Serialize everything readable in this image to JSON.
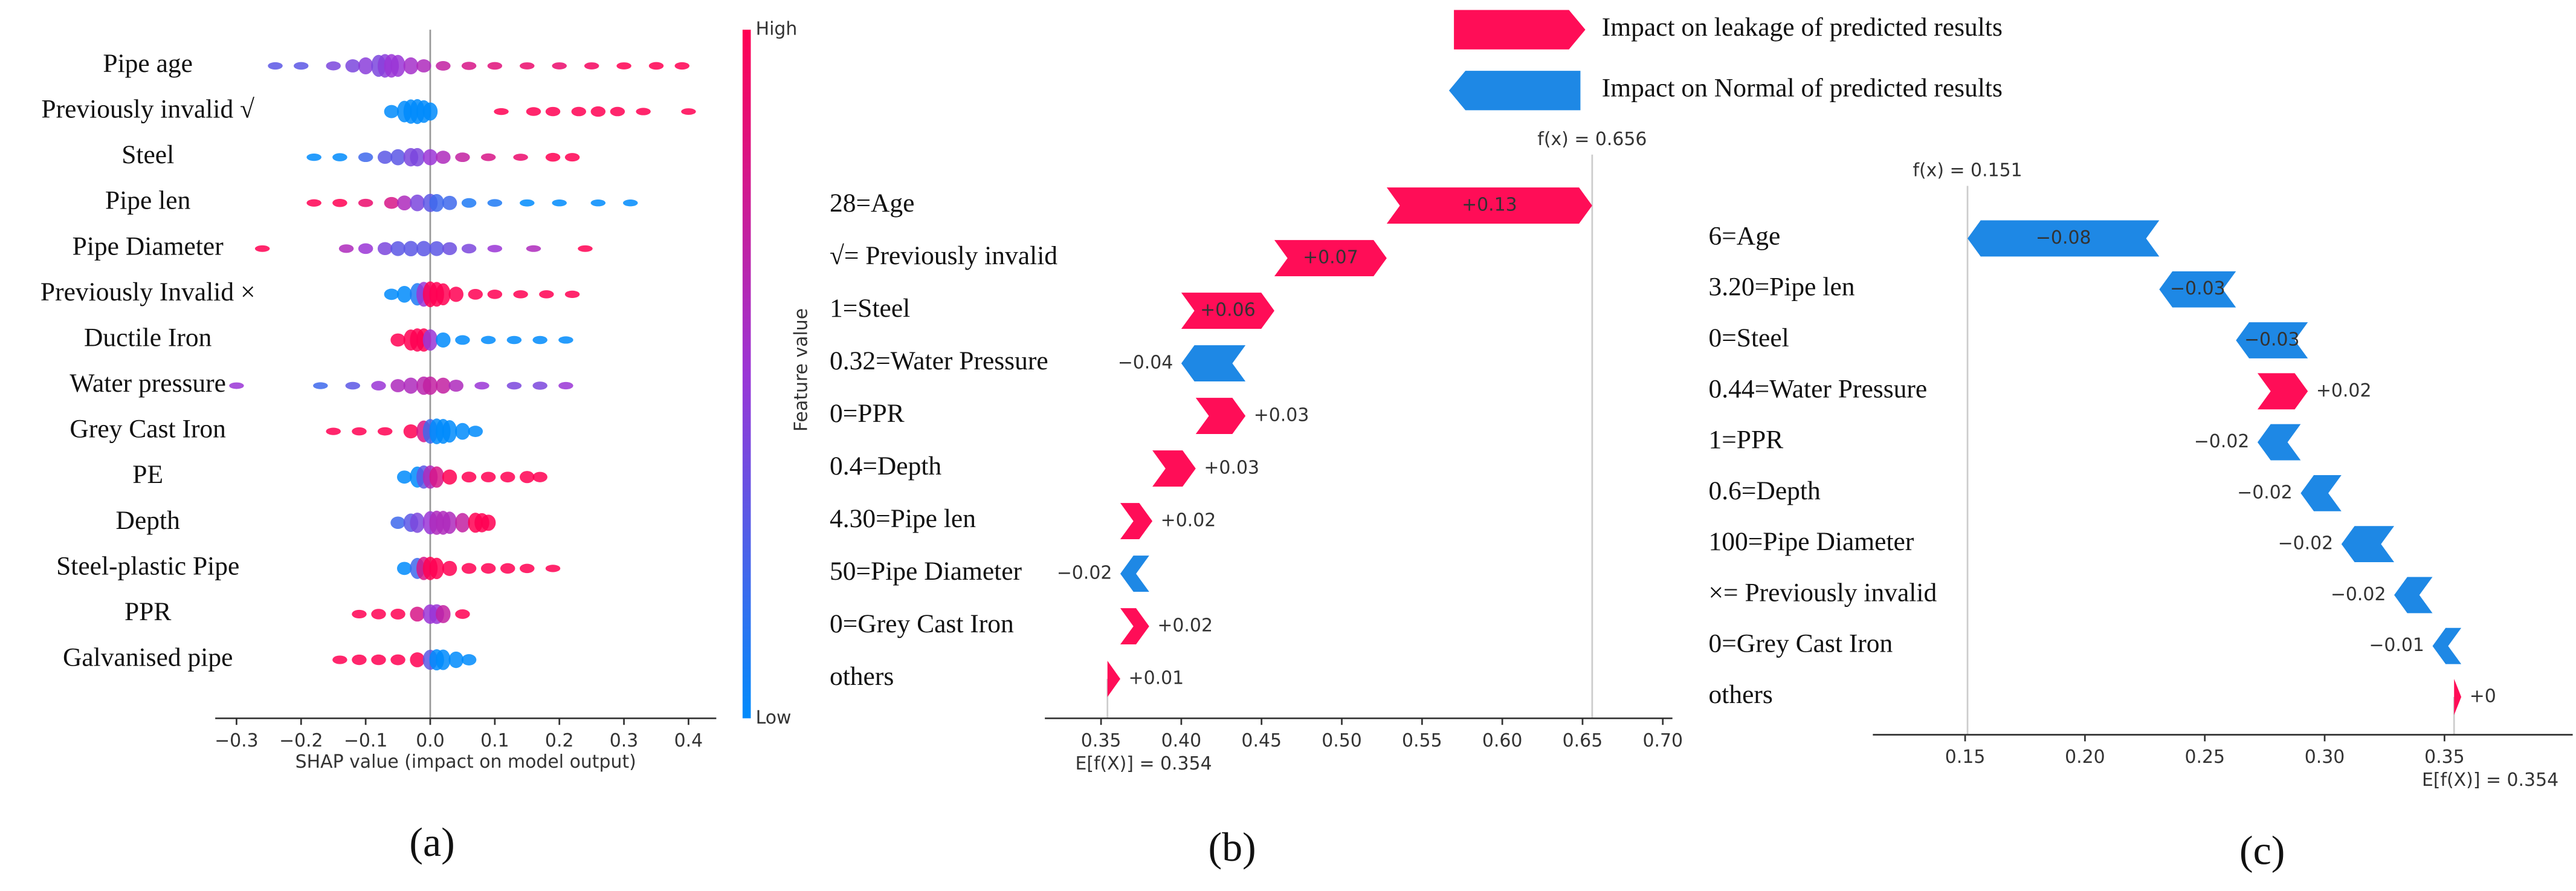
{
  "legend": {
    "items": [
      {
        "label": "Impact on leakage of predicted results",
        "color": "#ff0d57"
      },
      {
        "label": "Impact on Normal of predicted results",
        "color": "#1e88e5"
      }
    ]
  },
  "chart_data": [
    {
      "type": "beeswarm",
      "caption": "(a)",
      "xlabel": "SHAP value (impact on model output)",
      "xlim": [
        -0.333,
        0.443
      ],
      "xticks": [
        {
          "value": -0.3,
          "label": "−0.3"
        },
        {
          "value": -0.2,
          "label": "−0.2"
        },
        {
          "value": -0.1,
          "label": "−0.1"
        },
        {
          "value": 0,
          "label": "0.0"
        },
        0.1,
        0.2,
        0.3,
        0.4
      ],
      "colorbar": {
        "label": "Feature value",
        "high": "High",
        "low": "Low",
        "colors": [
          "#008bfb",
          "#9a35d6",
          "#ff0052"
        ]
      },
      "features": [
        {
          "name": "Pipe age",
          "values": [
            -0.24,
            -0.2,
            -0.15,
            -0.12,
            -0.1,
            -0.08,
            -0.07,
            -0.06,
            -0.05,
            -0.03,
            -0.01,
            0.02,
            0.06,
            0.1,
            0.15,
            0.2,
            0.25,
            0.3,
            0.35,
            0.39
          ],
          "feature_values": [
            0.3,
            0.3,
            0.4,
            0.4,
            0.45,
            0.4,
            0.45,
            0.5,
            0.5,
            0.55,
            0.6,
            0.7,
            0.8,
            0.85,
            0.9,
            0.9,
            0.95,
            1,
            1,
            1
          ]
        },
        {
          "name": "Previously invalid √",
          "values": [
            -0.06,
            -0.04,
            -0.03,
            -0.02,
            -0.01,
            0,
            0.11,
            0.16,
            0.19,
            0.23,
            0.26,
            0.29,
            0.33,
            0.4
          ],
          "feature_values": [
            0,
            0,
            0,
            0,
            0,
            0,
            1,
            1,
            1,
            1,
            1,
            1,
            1,
            1
          ]
        },
        {
          "name": "Steel",
          "values": [
            -0.18,
            -0.14,
            -0.1,
            -0.07,
            -0.05,
            -0.03,
            -0.02,
            0,
            0.02,
            0.05,
            0.09,
            0.14,
            0.19,
            0.22
          ],
          "feature_values": [
            0,
            0,
            0.2,
            0.3,
            0.3,
            0.4,
            0.4,
            0.5,
            0.6,
            0.7,
            0.8,
            0.9,
            1,
            1
          ]
        },
        {
          "name": "Pipe len",
          "values": [
            -0.18,
            -0.14,
            -0.1,
            -0.06,
            -0.04,
            -0.02,
            0,
            0.01,
            0.03,
            0.06,
            0.1,
            0.15,
            0.2,
            0.26,
            0.31
          ],
          "feature_values": [
            1,
            1,
            0.9,
            0.8,
            0.6,
            0.4,
            0.3,
            0.2,
            0.2,
            0.1,
            0.1,
            0,
            0,
            0,
            0
          ]
        },
        {
          "name": "Pipe Diameter",
          "values": [
            -0.26,
            -0.13,
            -0.1,
            -0.07,
            -0.05,
            -0.03,
            -0.01,
            0.01,
            0.03,
            0.06,
            0.1,
            0.16,
            0.24
          ],
          "feature_values": [
            1,
            0.6,
            0.5,
            0.4,
            0.3,
            0.3,
            0.3,
            0.3,
            0.35,
            0.4,
            0.5,
            0.6,
            1
          ]
        },
        {
          "name": "Previously Invalid ×",
          "values": [
            -0.06,
            -0.04,
            -0.02,
            -0.01,
            0,
            0.01,
            0.02,
            0.04,
            0.07,
            0.1,
            0.14,
            0.18,
            0.22
          ],
          "feature_values": [
            0,
            0,
            0.1,
            0.5,
            1,
            1,
            1,
            1,
            1,
            1,
            1,
            1,
            1
          ]
        },
        {
          "name": "Ductile Iron",
          "values": [
            -0.05,
            -0.03,
            -0.02,
            -0.01,
            0,
            0.02,
            0.05,
            0.09,
            0.13,
            0.17,
            0.21
          ],
          "feature_values": [
            1,
            1,
            1,
            1,
            0.5,
            0,
            0,
            0,
            0,
            0,
            0
          ]
        },
        {
          "name": "Water pressure",
          "values": [
            -0.3,
            -0.17,
            -0.12,
            -0.08,
            -0.05,
            -0.03,
            -0.01,
            0,
            0.02,
            0.04,
            0.08,
            0.13,
            0.17,
            0.21
          ],
          "feature_values": [
            0.5,
            0.2,
            0.3,
            0.5,
            0.6,
            0.6,
            0.65,
            0.7,
            0.7,
            0.6,
            0.5,
            0.4,
            0.4,
            0.5
          ]
        },
        {
          "name": "Grey Cast Iron",
          "values": [
            -0.15,
            -0.11,
            -0.07,
            -0.03,
            -0.01,
            0,
            0.01,
            0.02,
            0.03,
            0.05,
            0.07
          ],
          "feature_values": [
            1,
            1,
            1,
            1,
            0.8,
            0.2,
            0,
            0,
            0,
            0,
            0
          ]
        },
        {
          "name": "PE",
          "values": [
            -0.04,
            -0.02,
            -0.01,
            0,
            0.01,
            0.03,
            0.06,
            0.09,
            0.12,
            0.15,
            0.17
          ],
          "feature_values": [
            0,
            0,
            0.3,
            0.6,
            0.8,
            1,
            1,
            1,
            1,
            1,
            1
          ]
        },
        {
          "name": "Depth",
          "values": [
            -0.05,
            -0.03,
            -0.02,
            0,
            0.01,
            0.02,
            0.03,
            0.05,
            0.07,
            0.08,
            0.09
          ],
          "feature_values": [
            0.2,
            0.3,
            0.4,
            0.5,
            0.6,
            0.6,
            0.6,
            0.7,
            1,
            1,
            1
          ]
        },
        {
          "name": "Steel-plastic Pipe",
          "values": [
            -0.04,
            -0.02,
            -0.01,
            0,
            0.01,
            0.03,
            0.06,
            0.09,
            0.12,
            0.15,
            0.19
          ],
          "feature_values": [
            0,
            0.2,
            0.8,
            1,
            1,
            1,
            1,
            1,
            1,
            1,
            1
          ]
        },
        {
          "name": "PPR",
          "values": [
            -0.11,
            -0.08,
            -0.05,
            -0.02,
            0,
            0.01,
            0.02,
            0.05
          ],
          "feature_values": [
            1,
            1,
            1,
            0.8,
            0.5,
            0.5,
            0.7,
            1
          ]
        },
        {
          "name": "Galvanised pipe",
          "values": [
            -0.14,
            -0.11,
            -0.08,
            -0.05,
            -0.02,
            0,
            0.01,
            0.02,
            0.04,
            0.06
          ],
          "feature_values": [
            1,
            1,
            1,
            1,
            1,
            0.3,
            0,
            0,
            0,
            0
          ]
        }
      ]
    },
    {
      "type": "waterfall",
      "caption": "(b)",
      "categories": [
        "28=Age",
        "√= Previously invalid",
        "1=Steel",
        "0.32=Water Pressure",
        "0=PPR",
        "0.4=Depth",
        "4.30=Pipe len",
        "50=Pipe Diameter",
        "0=Grey Cast Iron",
        "others"
      ],
      "values": [
        0.128,
        0.07,
        0.058,
        -0.04,
        0.031,
        0.027,
        0.02,
        -0.018,
        0.018,
        0.008
      ],
      "value_labels": [
        "+0.13",
        "+0.07",
        "+0.06",
        "−0.04",
        "+0.03",
        "+0.03",
        "+0.02",
        "−0.02",
        "+0.02",
        "+0.01"
      ],
      "base": {
        "value": 0.354,
        "label": "E[f(X)] = 0.354"
      },
      "output": {
        "value": 0.656,
        "label": "f(x) = 0.656"
      },
      "xlim": [
        0.315,
        0.706
      ],
      "xticks": [
        0.35,
        {
          "value": 0.4,
          "label": "0.40"
        },
        0.45,
        {
          "value": 0.5,
          "label": "0.50"
        },
        0.55,
        {
          "value": 0.6,
          "label": "0.60"
        },
        0.65,
        {
          "value": 0.7,
          "label": "0.70"
        }
      ],
      "colors": {
        "positive": "#ff0d57",
        "negative": "#1e88e5"
      }
    },
    {
      "type": "waterfall",
      "caption": "(c)",
      "categories": [
        "6=Age",
        "3.20=Pipe len",
        "0=Steel",
        "0.44=Water Pressure",
        "1=PPR",
        "0.6=Depth",
        "100=Pipe Diameter",
        "×= Previously invalid",
        "0=Grey Cast Iron",
        "others"
      ],
      "values": [
        -0.08,
        -0.032,
        -0.03,
        0.021,
        -0.018,
        -0.017,
        -0.022,
        -0.016,
        -0.012,
        0.003
      ],
      "value_labels": [
        "−0.08",
        "−0.03",
        "−0.03",
        "+0.02",
        "−0.02",
        "−0.02",
        "−0.02",
        "−0.02",
        "−0.01",
        "+0"
      ],
      "base": {
        "value": 0.354,
        "label": "E[f(X)] = 0.354"
      },
      "output": {
        "value": 0.151,
        "label": "f(x) = 0.151"
      },
      "xlim": [
        0.1115,
        0.4035
      ],
      "xticks": [
        0.15,
        {
          "value": 0.2,
          "label": "0.20"
        },
        0.25,
        {
          "value": 0.3,
          "label": "0.30"
        },
        0.35
      ],
      "colors": {
        "positive": "#ff0d57",
        "negative": "#1e88e5"
      }
    }
  ]
}
